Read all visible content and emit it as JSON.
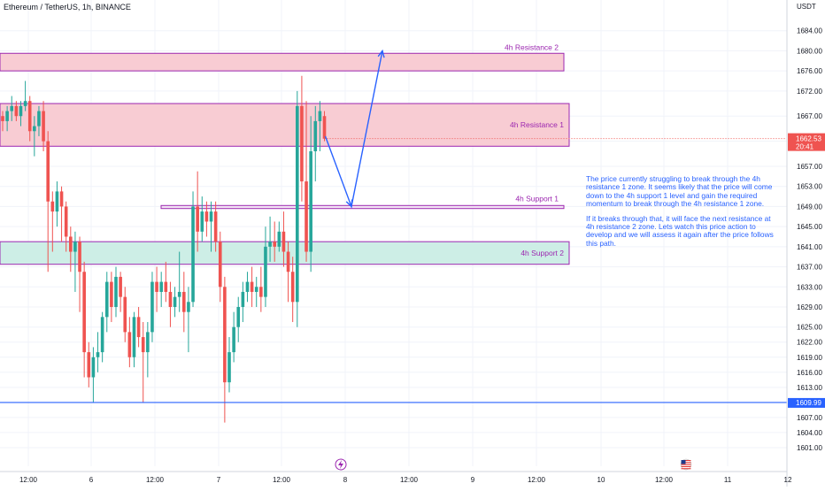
{
  "header": {
    "symbol_title": "Ethereum / TetherUS, 1h, BINANCE",
    "currency": "USDT"
  },
  "colors": {
    "up": "#26a69a",
    "down": "#ef5350",
    "resistance_fill": "#f8ccd3",
    "support_fill": "#cdeee6",
    "zone_border": "#9c27b0",
    "zone_label": "#9c27b0",
    "arrow": "#2962ff",
    "level_line": "#2962ff",
    "price_badge": "#ef5350",
    "level_badge": "#2962ff"
  },
  "annotation": {
    "paragraph1": "The price currently struggling to break through the 4h resistance 1 zone. It seems likely that the price will come down to the 4h support 1 level and gain the required momentum to break through the 4h resistance 1 zone.",
    "paragraph2": "If it breaks through that, it will face the next resistance at 4h resistance 2 zone. Lets watch this price action to develop and we will assess it again after the price follows this path."
  },
  "chart_data": {
    "type": "candlestick",
    "ylim": [
      1598,
      1688
    ],
    "y_ticks": [
      1684,
      1680,
      1676,
      1672,
      1667,
      1662,
      1657,
      1653,
      1649,
      1645,
      1641,
      1637,
      1633,
      1629,
      1625,
      1622,
      1619,
      1616,
      1613,
      1610,
      1607,
      1604,
      1601
    ],
    "x_tick_labels": [
      "12:00",
      "6",
      "12:00",
      "7",
      "12:00",
      "8",
      "12:00",
      "9",
      "12:00",
      "10",
      "12:00",
      "11",
      "12"
    ],
    "current_price": {
      "value": "1662.53",
      "countdown": "20:41"
    },
    "horizontal_line": {
      "value": 1609.99,
      "label": "1609.99"
    },
    "zones": [
      {
        "label": "4h Resistance 2",
        "top": 1679.5,
        "bottom": 1676.0,
        "kind": "resistance"
      },
      {
        "label": "4h Resistance 1",
        "top": 1669.5,
        "bottom": 1661.0,
        "kind": "resistance"
      },
      {
        "label": "4h Support 1",
        "top": 1649.2,
        "bottom": 1648.6,
        "kind": "line"
      },
      {
        "label": "4h Support 2",
        "top": 1642.0,
        "bottom": 1637.5,
        "kind": "support"
      }
    ],
    "projection": [
      1663,
      1649,
      1680
    ],
    "candles": [
      [
        1667,
        1668,
        1664,
        1666
      ],
      [
        1666,
        1669,
        1664,
        1668
      ],
      [
        1668,
        1671,
        1666,
        1669
      ],
      [
        1669,
        1670,
        1666,
        1667
      ],
      [
        1667,
        1670,
        1665,
        1669
      ],
      [
        1669,
        1674,
        1668,
        1670
      ],
      [
        1670,
        1671,
        1662,
        1664
      ],
      [
        1664,
        1667,
        1659,
        1665
      ],
      [
        1665,
        1669,
        1663,
        1668
      ],
      [
        1668,
        1670,
        1660,
        1662
      ],
      [
        1662,
        1664,
        1636,
        1650
      ],
      [
        1650,
        1652,
        1640,
        1648
      ],
      [
        1648,
        1654,
        1645,
        1652
      ],
      [
        1652,
        1653,
        1642,
        1649
      ],
      [
        1649,
        1650,
        1640,
        1643
      ],
      [
        1643,
        1645,
        1636,
        1640
      ],
      [
        1640,
        1644,
        1632,
        1642
      ],
      [
        1642,
        1643,
        1628,
        1636
      ],
      [
        1636,
        1638,
        1615,
        1620
      ],
      [
        1620,
        1622,
        1613,
        1615
      ],
      [
        1615,
        1621,
        1610,
        1619
      ],
      [
        1619,
        1624,
        1616,
        1620
      ],
      [
        1620,
        1628,
        1618,
        1627
      ],
      [
        1627,
        1636,
        1624,
        1634
      ],
      [
        1634,
        1636,
        1626,
        1629
      ],
      [
        1629,
        1637,
        1627,
        1635
      ],
      [
        1635,
        1636,
        1628,
        1631
      ],
      [
        1631,
        1633,
        1622,
        1624
      ],
      [
        1624,
        1627,
        1617,
        1619
      ],
      [
        1619,
        1628,
        1617,
        1627
      ],
      [
        1627,
        1629,
        1621,
        1623
      ],
      [
        1623,
        1626,
        1610,
        1620
      ],
      [
        1620,
        1626,
        1615,
        1624
      ],
      [
        1624,
        1636,
        1622,
        1634
      ],
      [
        1634,
        1637,
        1628,
        1632
      ],
      [
        1632,
        1636,
        1629,
        1634
      ],
      [
        1634,
        1638,
        1630,
        1632
      ],
      [
        1632,
        1634,
        1625,
        1629
      ],
      [
        1629,
        1633,
        1627,
        1631
      ],
      [
        1631,
        1640,
        1628,
        1632
      ],
      [
        1632,
        1636,
        1624,
        1628
      ],
      [
        1628,
        1633,
        1620,
        1630
      ],
      [
        1630,
        1652,
        1629,
        1649
      ],
      [
        1649,
        1656,
        1640,
        1644
      ],
      [
        1644,
        1651,
        1642,
        1648
      ],
      [
        1648,
        1650,
        1643,
        1646
      ],
      [
        1646,
        1650,
        1640,
        1648
      ],
      [
        1648,
        1650,
        1640,
        1642
      ],
      [
        1642,
        1644,
        1630,
        1633
      ],
      [
        1633,
        1635,
        1606,
        1614
      ],
      [
        1614,
        1623,
        1612,
        1620
      ],
      [
        1620,
        1628,
        1618,
        1625
      ],
      [
        1625,
        1631,
        1622,
        1629
      ],
      [
        1629,
        1634,
        1626,
        1632
      ],
      [
        1632,
        1636,
        1630,
        1634
      ],
      [
        1634,
        1637,
        1629,
        1632
      ],
      [
        1632,
        1635,
        1629,
        1633
      ],
      [
        1633,
        1637,
        1628,
        1631
      ],
      [
        1631,
        1645,
        1629,
        1641
      ],
      [
        1641,
        1647,
        1638,
        1642
      ],
      [
        1642,
        1646,
        1638,
        1641
      ],
      [
        1641,
        1646,
        1640,
        1644
      ],
      [
        1644,
        1648,
        1637,
        1640
      ],
      [
        1640,
        1642,
        1630,
        1636
      ],
      [
        1636,
        1639,
        1626,
        1630
      ],
      [
        1630,
        1672,
        1625,
        1669
      ],
      [
        1669,
        1675,
        1650,
        1654
      ],
      [
        1654,
        1670,
        1638,
        1640
      ],
      [
        1640,
        1667,
        1636,
        1660
      ],
      [
        1660,
        1669,
        1654,
        1666
      ],
      [
        1666,
        1670,
        1660,
        1668
      ],
      [
        1667,
        1668,
        1662,
        1662.5
      ]
    ]
  }
}
